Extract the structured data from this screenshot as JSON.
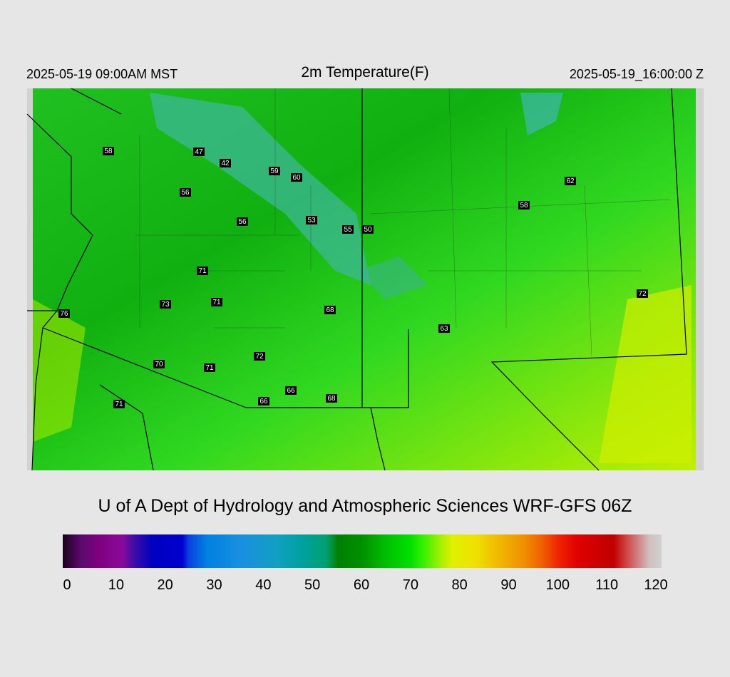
{
  "header": {
    "left": "2025-05-19 09:00AM MST",
    "title": "2m Temperature(F)",
    "right": "2025-05-19_16:00:00 Z"
  },
  "map": {
    "stations": [
      58,
      47,
      42,
      59,
      60,
      56,
      56,
      53,
      55,
      50,
      62,
      58,
      71,
      73,
      71,
      68,
      76,
      72,
      63,
      72,
      70,
      71,
      66,
      68,
      66,
      71
    ]
  },
  "footer": "U of A Dept of Hydrology and Atmospheric Sciences WRF-GFS 06Z",
  "colorbar": {
    "ticks": [
      0,
      10,
      20,
      30,
      40,
      50,
      60,
      70,
      80,
      90,
      100,
      110,
      120
    ]
  }
}
